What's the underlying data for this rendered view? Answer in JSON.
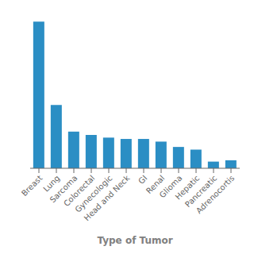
{
  "chart_data": {
    "type": "bar",
    "xlabel": "Type of Tumor",
    "categories": [
      "Breast",
      "Lung",
      "Sarcoma",
      "Colorectal",
      "Gynecologic",
      "Head and Neck",
      "GI",
      "Renal",
      "Glioma",
      "Hepatic",
      "Pancreatic",
      "Adrenocortis"
    ],
    "values": [
      220,
      95,
      55,
      50,
      46,
      44,
      44,
      40,
      32,
      28,
      10,
      12
    ],
    "color": "#2b8ec4",
    "ylim": [
      0,
      231
    ],
    "grid": false,
    "tick_labels": "x"
  }
}
